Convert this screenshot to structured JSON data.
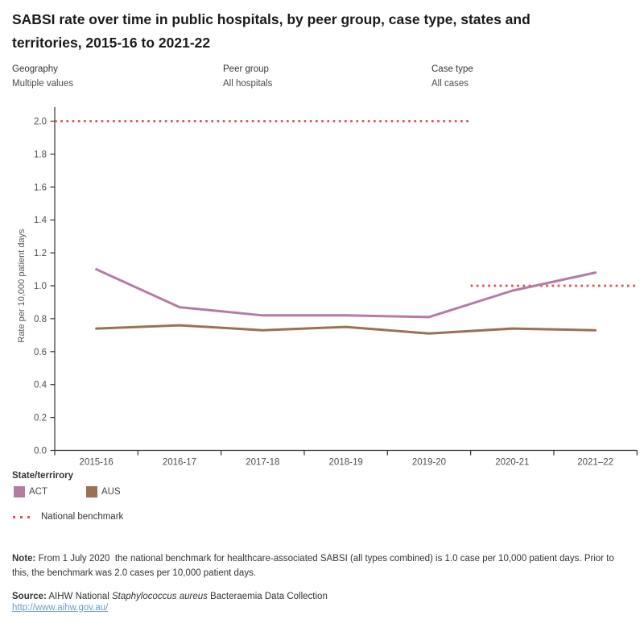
{
  "title": "SABSI rate over time in public hospitals, by peer group, case type, states and territories, 2015-16 to 2021-22",
  "filters": {
    "geography": {
      "label": "Geography",
      "value": "Multiple values"
    },
    "peer_group": {
      "label": "Peer group",
      "value": "All hospitals"
    },
    "case_type": {
      "label": "Case type",
      "value": "All cases"
    }
  },
  "chart_data": {
    "type": "line",
    "title": "SABSI rate over time in public hospitals",
    "categories": [
      "2015-16",
      "2016-17",
      "2017-18",
      "2018-19",
      "2019-20",
      "2020-21",
      "2021–22"
    ],
    "series": [
      {
        "name": "ACT",
        "color": "#b47ba4",
        "values": [
          1.1,
          0.87,
          0.82,
          0.82,
          0.81,
          0.97,
          1.08
        ]
      },
      {
        "name": "AUS",
        "color": "#9c7053",
        "values": [
          0.74,
          0.76,
          0.73,
          0.75,
          0.71,
          0.74,
          0.73
        ]
      }
    ],
    "benchmarks": [
      {
        "label": "National benchmark",
        "value": 2.0,
        "from_boundary": 0,
        "to_boundary": 5
      },
      {
        "label": "National benchmark",
        "value": 1.0,
        "from_boundary": 5,
        "to_boundary": 7
      }
    ],
    "benchmark_color": "#dc4f53",
    "xlabel": "",
    "ylabel": "Rate per 10,000 patient days",
    "ylim": [
      0.0,
      2.0
    ],
    "ytick_step": 0.2,
    "grid": false,
    "legend_position": "bottom-left"
  },
  "legend": {
    "title": "State/terrirory",
    "items": [
      {
        "label": "ACT",
        "color": "#b47ba4"
      },
      {
        "label": "AUS",
        "color": "#9c7053"
      }
    ],
    "benchmark_label": "National benchmark",
    "benchmark_color": "#dc4f53"
  },
  "note": {
    "label": "Note:",
    "text": " From 1 July 2020  the national benchmark for healthcare-associated SABSI (all types combined) is 1.0 case per 10,000 patient days. Prior to this, the benchmark was 2.0 cases per 10,000 patient days."
  },
  "source": {
    "label": "Source:",
    "pre": " AIHW National ",
    "italic": "Staphylococcus aureus",
    "post": " Bacteraemia Data Collection",
    "link": "http://www.aihw.gov.au/"
  }
}
